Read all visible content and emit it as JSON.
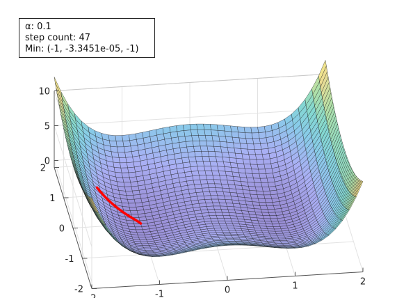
{
  "annotation": {
    "alpha_label": "α: 0.1",
    "step_label": "step count: 47",
    "min_label": "Min: (-1, -3.3451e-05, -1)"
  },
  "chart_data": {
    "type": "surface",
    "title": "",
    "xlabel": "",
    "ylabel": "",
    "zlabel": "",
    "x_range": [
      -2,
      2
    ],
    "y_range": [
      -2,
      2
    ],
    "z_range": [
      -1,
      10
    ],
    "x_ticks": [
      "-2",
      "-1",
      "0",
      "1",
      "2"
    ],
    "y_ticks": [
      "-2",
      "-1",
      "0",
      "1",
      "2"
    ],
    "z_ticks": [
      "0",
      "5",
      "10"
    ],
    "grid": true,
    "colormap": "parula (light, semi-transparent)",
    "surface_function": "z = x^4 - 2x^2 + y^2",
    "grid_resolution": 41,
    "alpha": 0.1,
    "step_count": 47,
    "minimum": [
      -1,
      -3.3451e-05,
      -1
    ],
    "path_color": "#ff0000"
  }
}
